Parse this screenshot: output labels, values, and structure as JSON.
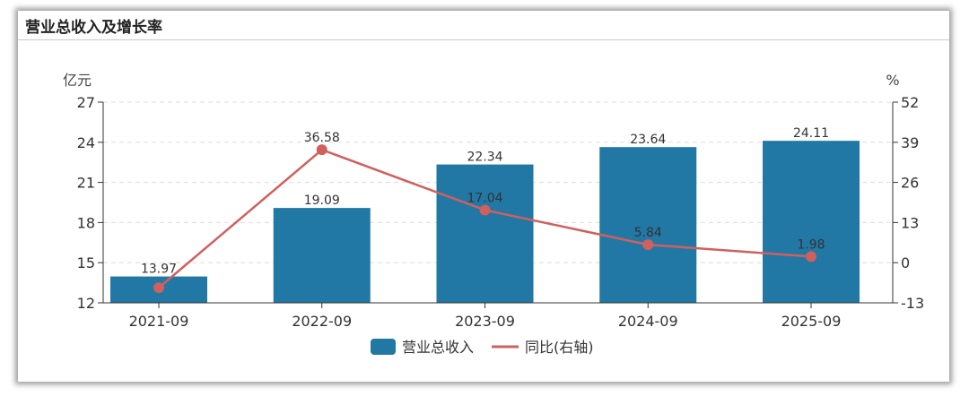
{
  "title": "营业总收入及增长率",
  "chart_data": {
    "type": "bar+line",
    "categories": [
      "2021-09",
      "2022-09",
      "2023-09",
      "2024-09",
      "2025-09"
    ],
    "series": [
      {
        "name": "营业总收入",
        "type": "bar",
        "axis": "left",
        "values": [
          13.97,
          19.09,
          22.34,
          23.64,
          24.11
        ],
        "labels": [
          "13.97",
          "19.09",
          "22.34",
          "23.64",
          "24.11"
        ],
        "color": "#2178a5"
      },
      {
        "name": "同比(右轴)",
        "type": "line",
        "axis": "right",
        "values": [
          -8.1,
          36.58,
          17.04,
          5.84,
          1.98
        ],
        "labels": [
          "",
          "36.58",
          "17.04",
          "5.84",
          "1.98"
        ],
        "color": "#d0605e"
      }
    ],
    "left_axis": {
      "unit": "亿元",
      "ylim": [
        12,
        27
      ],
      "ticks": [
        "12",
        "15",
        "18",
        "21",
        "24",
        "27"
      ]
    },
    "right_axis": {
      "unit": "%",
      "ylim": [
        -13,
        52
      ],
      "ticks": [
        "-13",
        "0",
        "13",
        "26",
        "39",
        "52"
      ]
    },
    "grid": "dashed horizontal",
    "legend": {
      "position": "bottom",
      "items": [
        "营业总收入",
        "同比(右轴)"
      ]
    }
  }
}
